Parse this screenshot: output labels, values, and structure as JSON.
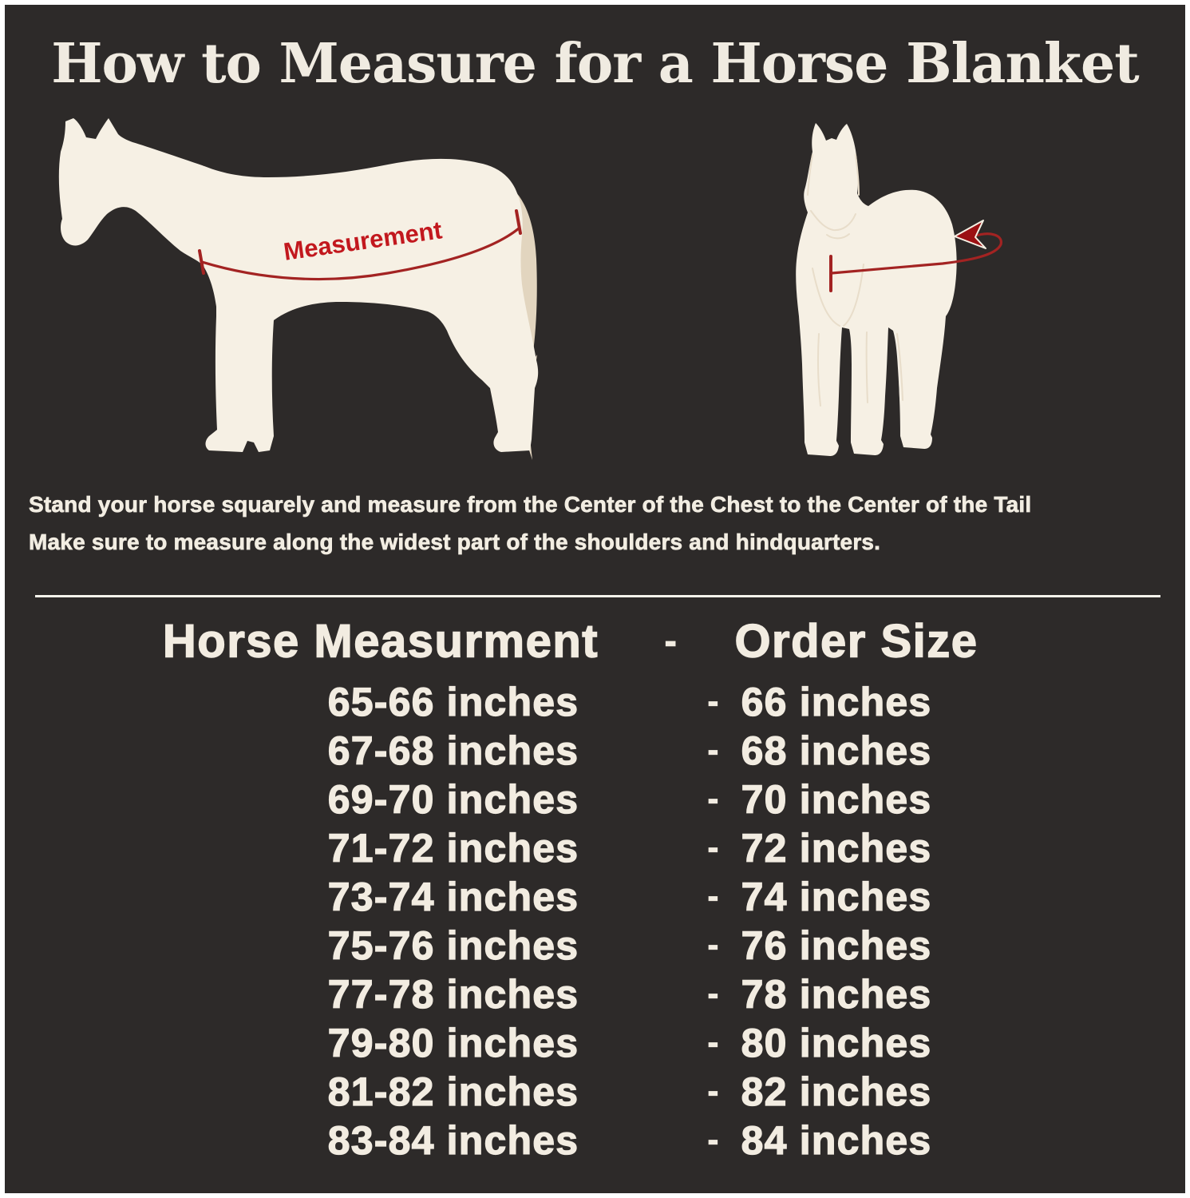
{
  "title": "How to Measure for a Horse Blanket",
  "diagram": {
    "measurement_label": "Measurement"
  },
  "instructions": {
    "line1": "Stand your horse squarely and measure from the Center of the Chest to the Center of the Tail",
    "line2": "Make sure to measure along the widest part of the shoulders and hindquarters."
  },
  "table": {
    "header": {
      "measurement": "Horse Measurment",
      "separator": "-",
      "size": "Order Size"
    },
    "rows": [
      {
        "measurement": "65-66 inches",
        "separator": "-",
        "size": "66 inches"
      },
      {
        "measurement": "67-68 inches",
        "separator": "-",
        "size": "68 inches"
      },
      {
        "measurement": "69-70 inches",
        "separator": "-",
        "size": "70 inches"
      },
      {
        "measurement": "71-72 inches",
        "separator": "-",
        "size": "72 inches"
      },
      {
        "measurement": "73-74 inches",
        "separator": "-",
        "size": "74 inches"
      },
      {
        "measurement": "75-76 inches",
        "separator": "-",
        "size": "76 inches"
      },
      {
        "measurement": "77-78 inches",
        "separator": "-",
        "size": "78 inches"
      },
      {
        "measurement": "79-80 inches",
        "separator": "-",
        "size": "80 inches"
      },
      {
        "measurement": "81-82 inches",
        "separator": "-",
        "size": "82 inches"
      },
      {
        "measurement": "83-84 inches",
        "separator": "-",
        "size": "84 inches"
      }
    ]
  },
  "colors": {
    "background": "#2d2a29",
    "frame_border": "#ffffff",
    "cream_text": "#f2ece1",
    "horse_body": "#f6f0e4",
    "horse_tail": "#e2d5bf",
    "measurement_red": "#c2181e",
    "line_red": "#a32322"
  }
}
